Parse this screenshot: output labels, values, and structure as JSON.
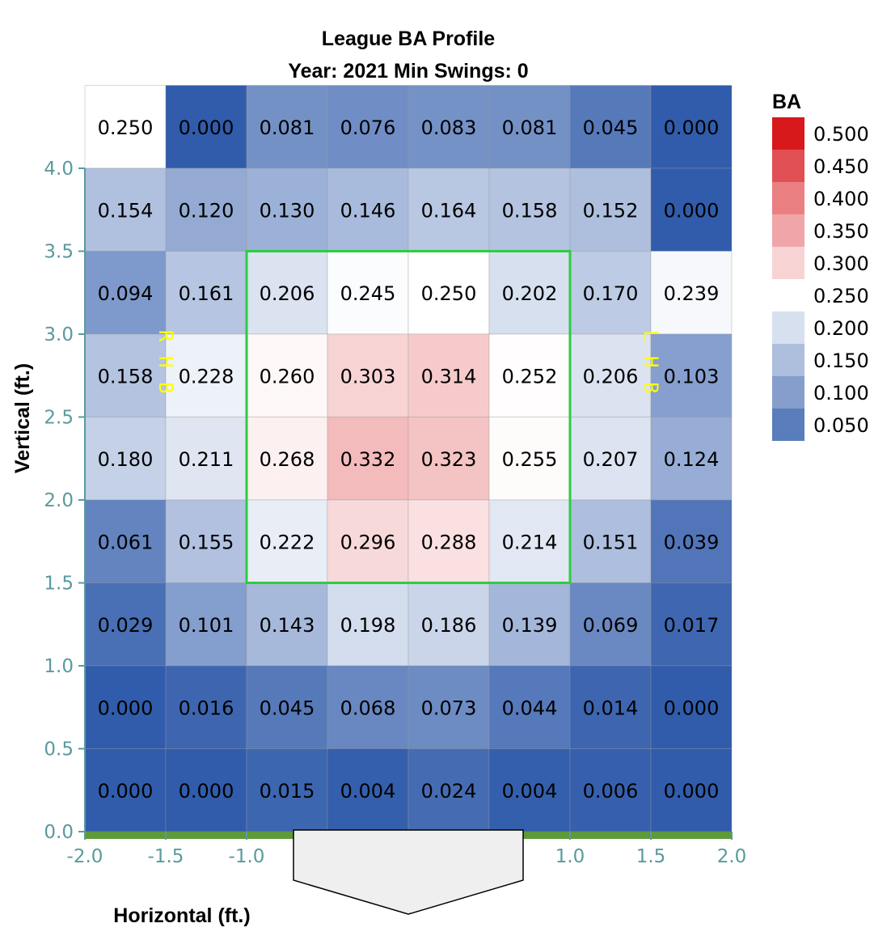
{
  "chart_data": {
    "type": "heatmap",
    "title": "League BA Profile",
    "subtitle": "Year: 2021 Min Swings: 0",
    "xlabel": "Horizontal (ft.)",
    "ylabel": "Vertical (ft.)",
    "xlim": [
      -2.0,
      2.0
    ],
    "ylim": [
      0.0,
      4.0
    ],
    "x_ticks": [
      "-2.0",
      "-1.5",
      "-1.0",
      "1.0",
      "1.5",
      "2.0"
    ],
    "x_tick_values": [
      -2.0,
      -1.5,
      -1.0,
      1.0,
      1.5,
      2.0
    ],
    "y_ticks": [
      "0.0",
      "0.5",
      "1.0",
      "1.5",
      "2.0",
      "2.5",
      "3.0",
      "3.5",
      "4.0"
    ],
    "y_tick_values": [
      0.0,
      0.5,
      1.0,
      1.5,
      2.0,
      2.5,
      3.0,
      3.5,
      4.0
    ],
    "x_bins": [
      -2.0,
      -1.5,
      -1.0,
      -0.5,
      0.0,
      0.5,
      1.0,
      1.5,
      2.0
    ],
    "y_bins_top_to_bottom": [
      4.5,
      4.0,
      3.5,
      3.0,
      2.5,
      2.0,
      1.5,
      1.0,
      0.5,
      0.0
    ],
    "values": [
      [
        "0.250",
        "0.000",
        "0.081",
        "0.076",
        "0.083",
        "0.081",
        "0.045",
        "0.000"
      ],
      [
        "0.154",
        "0.120",
        "0.130",
        "0.146",
        "0.164",
        "0.158",
        "0.152",
        "0.000"
      ],
      [
        "0.094",
        "0.161",
        "0.206",
        "0.245",
        "0.250",
        "0.202",
        "0.170",
        "0.239"
      ],
      [
        "0.158",
        "0.228",
        "0.260",
        "0.303",
        "0.314",
        "0.252",
        "0.206",
        "0.103"
      ],
      [
        "0.180",
        "0.211",
        "0.268",
        "0.332",
        "0.323",
        "0.255",
        "0.207",
        "0.124"
      ],
      [
        "0.061",
        "0.155",
        "0.222",
        "0.296",
        "0.288",
        "0.214",
        "0.151",
        "0.039"
      ],
      [
        "0.029",
        "0.101",
        "0.143",
        "0.198",
        "0.186",
        "0.139",
        "0.069",
        "0.017"
      ],
      [
        "0.000",
        "0.016",
        "0.045",
        "0.068",
        "0.073",
        "0.044",
        "0.014",
        "0.000"
      ],
      [
        "0.000",
        "0.000",
        "0.015",
        "0.004",
        "0.024",
        "0.004",
        "0.006",
        "0.000"
      ]
    ],
    "strike_zone": {
      "x": [
        -1.0,
        1.0
      ],
      "y": [
        1.5,
        3.5
      ],
      "color": "#2ecc40"
    },
    "side_labels": {
      "left": [
        "R",
        "H",
        "B"
      ],
      "left_x": -1.5,
      "right": [
        "L",
        "H",
        "B"
      ],
      "right_x": 1.5,
      "y_start": 2.95,
      "color": "#ffff00"
    },
    "legend": {
      "title": "BA",
      "position": "right",
      "values": [
        "0.500",
        "0.450",
        "0.400",
        "0.350",
        "0.300",
        "0.250",
        "0.200",
        "0.150",
        "0.100",
        "0.050"
      ],
      "colors": [
        "#d7191c",
        "#e04f54",
        "#ea7f82",
        "#f0a6a8",
        "#f7d3d4",
        "#ffffff",
        "#d6e0ee",
        "#aebfdd",
        "#859ecc",
        "#5a7dbb"
      ]
    },
    "colors": {
      "tick": "#5a9a9e",
      "axis": "#5a9a9e",
      "ground": "#5e9a3a",
      "plate_fill": "#efefef",
      "plate_stroke": "#000000",
      "cell_stroke": "#9a9a9a"
    },
    "grid": false
  }
}
